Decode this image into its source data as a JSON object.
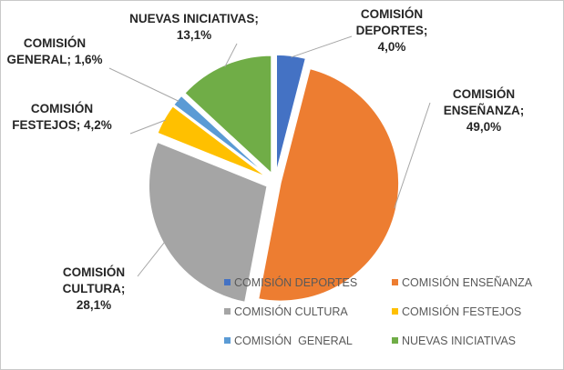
{
  "chart_data": {
    "type": "pie",
    "title": "",
    "exploded": true,
    "legend_position": "bottom-right",
    "slices": [
      {
        "name": "COMISIÓN DEPORTES",
        "legend": "COMISIÓN DEPORTES",
        "value": 4.0,
        "label_lines": [
          "COMISIÓN",
          "DEPORTES;",
          "4,0%"
        ],
        "color": "#4472C4"
      },
      {
        "name": "COMISIÓN ENSEÑANZA",
        "legend": "COMISIÓN ENSEÑANZA",
        "value": 49.0,
        "label_lines": [
          "COMISIÓN",
          "ENSEÑANZA;",
          "49,0%"
        ],
        "color": "#ED7D31"
      },
      {
        "name": "COMISIÓN CULTURA",
        "legend": "COMISIÓN CULTURA",
        "value": 28.1,
        "label_lines": [
          "COMISIÓN",
          "CULTURA;",
          "28,1%"
        ],
        "color": "#A5A5A5"
      },
      {
        "name": "COMISIÓN FESTEJOS",
        "legend": "COMISIÓN FESTEJOS",
        "value": 4.2,
        "label_lines": [
          "COMISIÓN",
          "FESTEJOS; 4,2%"
        ],
        "color": "#FFC000"
      },
      {
        "name": "COMISIÓN GENERAL",
        "legend": "COMISIÓN  GENERAL",
        "value": 1.6,
        "label_lines": [
          "COMISIÓN",
          "GENERAL; 1,6%"
        ],
        "color": "#5B9BD5"
      },
      {
        "name": "NUEVAS INICIATIVAS",
        "legend": "NUEVAS INICIATIVAS",
        "value": 13.1,
        "label_lines": [
          "NUEVAS INICIATIVAS;",
          "13,1%"
        ],
        "color": "#70AD47"
      }
    ]
  }
}
